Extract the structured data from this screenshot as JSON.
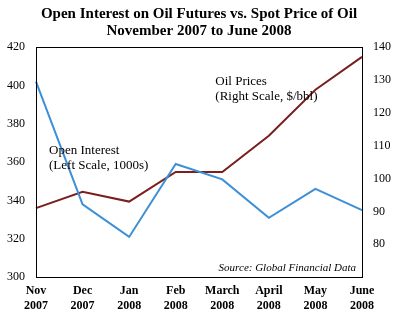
{
  "chart_data": {
    "type": "line",
    "title": "Open Interest on Oil Futures vs. Spot Price of Oil",
    "subtitle": "November 2007 to June 2008",
    "categories": [
      "Nov 2007",
      "Dec 2007",
      "Jan 2008",
      "Feb 2008",
      "March 2008",
      "April 2008",
      "May 2008",
      "June 2008"
    ],
    "series": [
      {
        "name": "Open Interest (Left Scale, 1000s)",
        "color": "#3d8fd6",
        "values": [
          402,
          338,
          321,
          359,
          351,
          331,
          346,
          335
        ]
      },
      {
        "name": "Oil Prices (Right Scale, $/bbl)",
        "color": "#7a1f1f",
        "axis": "y2",
        "values": [
          91,
          96,
          93,
          102,
          102,
          113,
          127,
          137
        ]
      }
    ],
    "ylim": [
      300,
      420
    ],
    "yticks": [
      300,
      320,
      340,
      360,
      380,
      400,
      420
    ],
    "y2lim": [
      70,
      140
    ],
    "y2ticks": [
      80,
      90,
      100,
      110,
      120,
      130,
      140
    ],
    "grid": false,
    "annotations": [
      "Source: Global Financial Data"
    ]
  }
}
